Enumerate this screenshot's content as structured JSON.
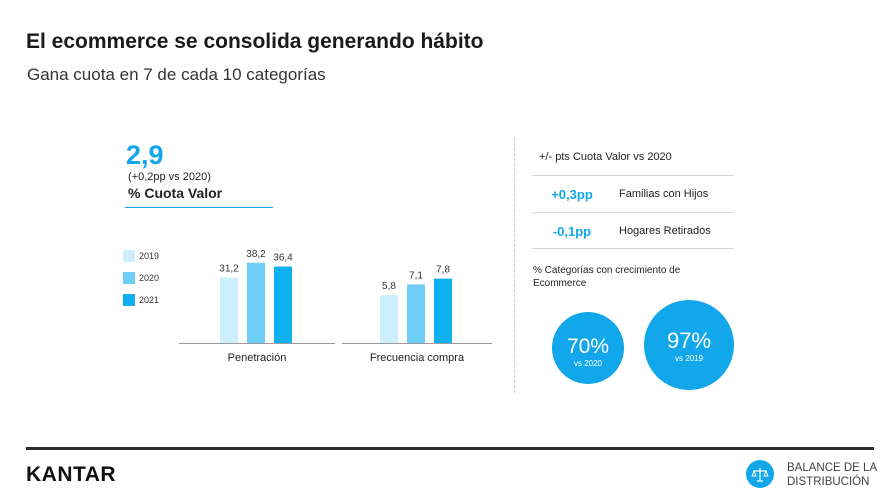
{
  "header": {
    "title": "El ecommerce se consolida generando hábito",
    "subtitle": "Gana cuota en 7 de cada 10 categorías"
  },
  "highlight": {
    "value": "2,9",
    "change": "(+0,2pp vs 2020)",
    "label": "% Cuota Valor"
  },
  "legend": [
    {
      "label": "2019",
      "color": "#cdeefc"
    },
    {
      "label": "2020",
      "color": "#6dcff7"
    },
    {
      "label": "2021",
      "color": "#10b0f0"
    }
  ],
  "chart_data": {
    "type": "bar",
    "categories": [
      "Penetración",
      "Frecuencia compra"
    ],
    "series": [
      {
        "name": "2019",
        "values": [
          31.2,
          5.8
        ],
        "labels": [
          "31,2",
          "5,8"
        ]
      },
      {
        "name": "2020",
        "values": [
          38.2,
          7.1
        ],
        "labels": [
          "38,2",
          "7,1"
        ]
      },
      {
        "name": "2021",
        "values": [
          36.4,
          7.8
        ],
        "labels": [
          "36,4",
          "7,8"
        ]
      }
    ],
    "grid": false
  },
  "right_panel": {
    "heading": "+/- pts Cuota Valor vs 2020",
    "rows": [
      {
        "value": "+0,3pp",
        "label": "Familias con Hijos"
      },
      {
        "value": "-0,1pp",
        "label": "Hogares Retirados"
      }
    ],
    "categories_heading": "% Categorías con crecimiento de Ecommerce",
    "circles": [
      {
        "value": "70%",
        "sub": "vs 2020"
      },
      {
        "value": "97%",
        "sub": "vs 2019"
      }
    ]
  },
  "footer": {
    "logo": "KANTAR",
    "badge_line1": "BALANCE DE LA",
    "badge_line2": "DISTRIBUCIÓN",
    "icon": "scale-icon"
  }
}
